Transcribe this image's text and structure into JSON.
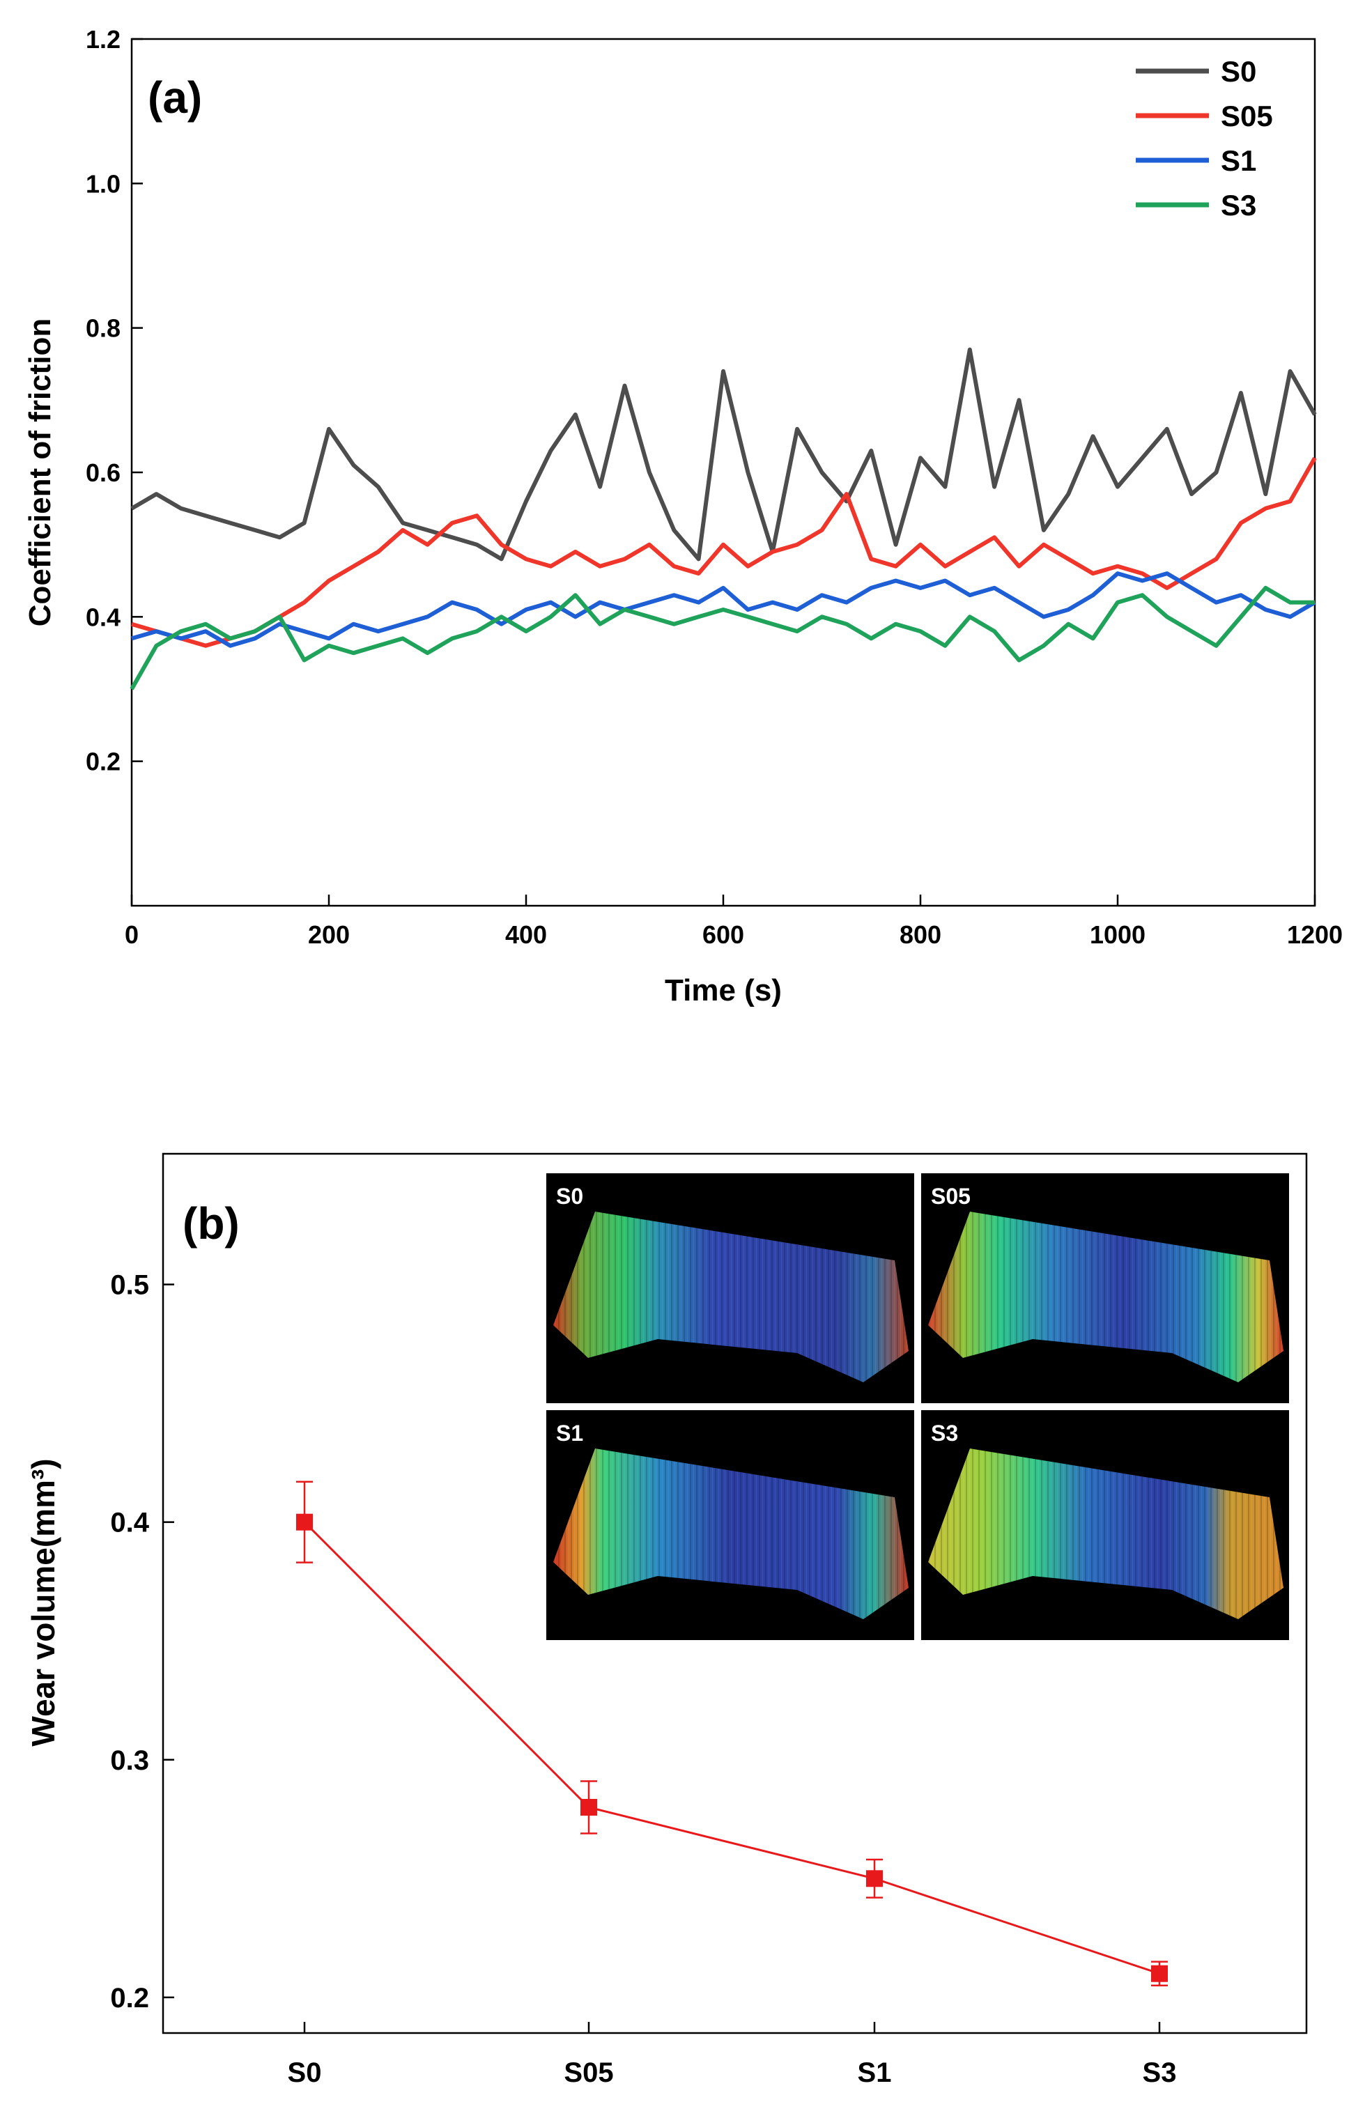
{
  "panel_a": {
    "chart_data": {
      "type": "line",
      "label": "(a)",
      "xlabel": "Time (s)",
      "ylabel": "Coefficient of friction",
      "xlim": [
        0,
        1200
      ],
      "ylim": [
        0,
        1.2
      ],
      "xticks": [
        "0",
        "200",
        "400",
        "600",
        "800",
        "1000",
        "1200"
      ],
      "yticks": [
        "0.2",
        "0.4",
        "0.6",
        "0.8",
        "1.0",
        "1.2"
      ],
      "legend_position": "top-right",
      "x": [
        0,
        25,
        50,
        75,
        100,
        125,
        150,
        175,
        200,
        225,
        250,
        275,
        300,
        325,
        350,
        375,
        400,
        425,
        450,
        475,
        500,
        525,
        550,
        575,
        600,
        625,
        650,
        675,
        700,
        725,
        750,
        775,
        800,
        825,
        850,
        875,
        900,
        925,
        950,
        975,
        1000,
        1025,
        1050,
        1075,
        1100,
        1125,
        1150,
        1175,
        1200
      ],
      "series": [
        {
          "name": "S0",
          "color": "#4d4d4d",
          "values": [
            0.55,
            0.57,
            0.55,
            0.54,
            0.53,
            0.52,
            0.51,
            0.53,
            0.66,
            0.61,
            0.58,
            0.53,
            0.52,
            0.51,
            0.5,
            0.48,
            0.56,
            0.63,
            0.68,
            0.58,
            0.72,
            0.6,
            0.52,
            0.48,
            0.74,
            0.6,
            0.49,
            0.66,
            0.6,
            0.56,
            0.63,
            0.5,
            0.62,
            0.58,
            0.77,
            0.58,
            0.7,
            0.52,
            0.57,
            0.65,
            0.58,
            0.62,
            0.66,
            0.57,
            0.6,
            0.71,
            0.57,
            0.74,
            0.68
          ]
        },
        {
          "name": "S05",
          "color": "#f0352a",
          "values": [
            0.39,
            0.38,
            0.37,
            0.36,
            0.37,
            0.38,
            0.4,
            0.42,
            0.45,
            0.47,
            0.49,
            0.52,
            0.5,
            0.53,
            0.54,
            0.5,
            0.48,
            0.47,
            0.49,
            0.47,
            0.48,
            0.5,
            0.47,
            0.46,
            0.5,
            0.47,
            0.49,
            0.5,
            0.52,
            0.57,
            0.48,
            0.47,
            0.5,
            0.47,
            0.49,
            0.51,
            0.47,
            0.5,
            0.48,
            0.46,
            0.47,
            0.46,
            0.44,
            0.46,
            0.48,
            0.53,
            0.55,
            0.56,
            0.62
          ]
        },
        {
          "name": "S1",
          "color": "#1e5fd6",
          "values": [
            0.37,
            0.38,
            0.37,
            0.38,
            0.36,
            0.37,
            0.39,
            0.38,
            0.37,
            0.39,
            0.38,
            0.39,
            0.4,
            0.42,
            0.41,
            0.39,
            0.41,
            0.42,
            0.4,
            0.42,
            0.41,
            0.42,
            0.43,
            0.42,
            0.44,
            0.41,
            0.42,
            0.41,
            0.43,
            0.42,
            0.44,
            0.45,
            0.44,
            0.45,
            0.43,
            0.44,
            0.42,
            0.4,
            0.41,
            0.43,
            0.46,
            0.45,
            0.46,
            0.44,
            0.42,
            0.43,
            0.41,
            0.4,
            0.42
          ]
        },
        {
          "name": "S3",
          "color": "#1fa35a",
          "values": [
            0.3,
            0.36,
            0.38,
            0.39,
            0.37,
            0.38,
            0.4,
            0.34,
            0.36,
            0.35,
            0.36,
            0.37,
            0.35,
            0.37,
            0.38,
            0.4,
            0.38,
            0.4,
            0.43,
            0.39,
            0.41,
            0.4,
            0.39,
            0.4,
            0.41,
            0.4,
            0.39,
            0.38,
            0.4,
            0.39,
            0.37,
            0.39,
            0.38,
            0.36,
            0.4,
            0.38,
            0.34,
            0.36,
            0.39,
            0.37,
            0.42,
            0.43,
            0.4,
            0.38,
            0.36,
            0.4,
            0.44,
            0.42,
            0.42
          ]
        }
      ]
    }
  },
  "panel_b": {
    "chart_data": {
      "type": "line",
      "label": "(b)",
      "xlabel": "",
      "ylabel": "Wear volume(mm³)",
      "categories": [
        "S0",
        "S05",
        "S1",
        "S3"
      ],
      "yticks": [
        "0.2",
        "0.3",
        "0.4",
        "0.5"
      ],
      "ylim": [
        0.185,
        0.555
      ],
      "series": [
        {
          "name": "",
          "color": "#e8191b",
          "values": [
            0.4,
            0.28,
            0.25,
            0.21
          ],
          "errors": [
            0.017,
            0.011,
            0.008,
            0.005
          ]
        }
      ]
    },
    "inset": {
      "tiles": [
        {
          "label": "S0"
        },
        {
          "label": "S05"
        },
        {
          "label": "S1"
        },
        {
          "label": "S3"
        }
      ]
    }
  }
}
